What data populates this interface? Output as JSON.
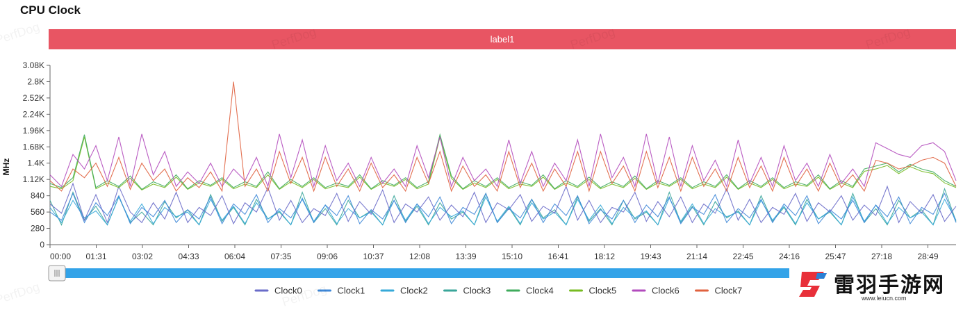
{
  "title": "CPU Clock",
  "watermark": "PerfDog",
  "colors": {
    "banner": "#e85563",
    "slider": "#33a3e8",
    "Clock0": "#6a6cc9",
    "Clock1": "#3f88d8",
    "Clock2": "#36a9d8",
    "Clock3": "#3aa69a",
    "Clock4": "#3fab5c",
    "Clock5": "#77bb22",
    "Clock6": "#b24bbd",
    "Clock7": "#e0623f"
  },
  "logo": {
    "name": "雷羽手游网",
    "url": "www.leiucn.com"
  },
  "chart_data": {
    "type": "line",
    "banner_label": "label1",
    "ylabel": "MHz",
    "ylim": [
      0,
      3080
    ],
    "y_ticks": [
      "0",
      "280",
      "560",
      "840",
      "1.12K",
      "1.4K",
      "1.68K",
      "1.96K",
      "2.24K",
      "2.52K",
      "2.8K",
      "3.08K"
    ],
    "x_ticks": [
      "00:00",
      "01:31",
      "03:02",
      "04:33",
      "06:04",
      "07:35",
      "09:06",
      "10:37",
      "12:08",
      "13:39",
      "15:10",
      "16:41",
      "18:12",
      "19:43",
      "21:14",
      "22:45",
      "24:16",
      "25:47",
      "27:18",
      "28:49"
    ],
    "x_range_seconds": [
      0,
      1860
    ],
    "legend": [
      "Clock0",
      "Clock1",
      "Clock2",
      "Clock3",
      "Clock4",
      "Clock5",
      "Clock6",
      "Clock7"
    ],
    "series": [
      {
        "name": "Clock0",
        "values": [
          700,
          540,
          1050,
          420,
          860,
          380,
          1000,
          560,
          380,
          720,
          440,
          900,
          380,
          640,
          500,
          840,
          360,
          720,
          560,
          980,
          420,
          760,
          380,
          620,
          500,
          880,
          400,
          740,
          520,
          940,
          380,
          700,
          560,
          820,
          420,
          680,
          480,
          900,
          380,
          720,
          600,
          860,
          400,
          660,
          540,
          1000,
          420,
          760,
          380,
          640,
          560,
          900,
          400,
          740,
          480,
          820,
          380,
          700,
          540,
          960,
          420,
          780,
          380,
          640,
          520,
          880,
          400,
          720,
          560,
          840,
          420,
          680,
          500,
          1000,
          380,
          740,
          540,
          860,
          400,
          660
        ]
      },
      {
        "name": "Clock1",
        "values": [
          560,
          420,
          880,
          380,
          720,
          500,
          840,
          360,
          640,
          480,
          760,
          380,
          600,
          440,
          820,
          360,
          700,
          520,
          860,
          380,
          620,
          460,
          780,
          380,
          680,
          500,
          840,
          360,
          600,
          440,
          760,
          380,
          700,
          480,
          820,
          360,
          640,
          520,
          880,
          380,
          620,
          460,
          780,
          380,
          700,
          500,
          840,
          360,
          600,
          440,
          760,
          380,
          680,
          480,
          820,
          360,
          640,
          520,
          860,
          380,
          620,
          460,
          780,
          380,
          700,
          500,
          840,
          360,
          600,
          440,
          760,
          380,
          680,
          480,
          820,
          360,
          640,
          520,
          880,
          380
        ]
      },
      {
        "name": "Clock2",
        "values": [
          640,
          380,
          760,
          460,
          580,
          340,
          820,
          400,
          700,
          360,
          640,
          480,
          560,
          340,
          780,
          420,
          660,
          360,
          720,
          440,
          580,
          340,
          800,
          400,
          680,
          360,
          620,
          460,
          560,
          340,
          760,
          420,
          700,
          360,
          640,
          480,
          580,
          340,
          820,
          400,
          660,
          360,
          720,
          440,
          560,
          340,
          780,
          420,
          680,
          360,
          640,
          460,
          580,
          340,
          800,
          400,
          700,
          360,
          620,
          480,
          560,
          340,
          760,
          420,
          660,
          360,
          720,
          440,
          580,
          340,
          820,
          400,
          680,
          360,
          640,
          460,
          560,
          340,
          780,
          420
        ]
      },
      {
        "name": "Clock3",
        "values": [
          760,
          340,
          900,
          420,
          660,
          340,
          820,
          380,
          560,
          340,
          740,
          460,
          600,
          340,
          860,
          400,
          640,
          340,
          780,
          440,
          560,
          340,
          900,
          380,
          620,
          340,
          760,
          460,
          580,
          340,
          840,
          400,
          660,
          340,
          720,
          440,
          560,
          340,
          880,
          380,
          640,
          340,
          780,
          460,
          600,
          340,
          820,
          400,
          620,
          340,
          760,
          440,
          560,
          340,
          900,
          380,
          660,
          340,
          740,
          460,
          580,
          340,
          840,
          400,
          640,
          340,
          780,
          440,
          560,
          340,
          880,
          380,
          620,
          340,
          760,
          460,
          600,
          340,
          960,
          400
        ]
      },
      {
        "name": "Clock4",
        "values": [
          1050,
          980,
          1150,
          1890,
          980,
          1100,
          1000,
          1180,
          950,
          1080,
          1000,
          1200,
          960,
          1100,
          1020,
          1150,
          980,
          1080,
          1000,
          1250,
          960,
          1120,
          1000,
          1150,
          980,
          1060,
          1000,
          1200,
          960,
          1100,
          1020,
          1150,
          980,
          1080,
          1890,
          1180,
          960,
          1100,
          1000,
          1150,
          980,
          1080,
          1020,
          1200,
          960,
          1100,
          1000,
          1160,
          980,
          1080,
          1000,
          1180,
          960,
          1100,
          1020,
          1150,
          980,
          1080,
          1000,
          1200,
          960,
          1100,
          1000,
          1150,
          980,
          1080,
          1020,
          1200,
          960,
          1100,
          1000,
          1300,
          1350,
          1400,
          1250,
          1380,
          1300,
          1250,
          1100,
          1000
        ]
      },
      {
        "name": "Clock5",
        "values": [
          1000,
          960,
          1100,
          1850,
          960,
          1060,
          980,
          1140,
          940,
          1040,
          980,
          1160,
          950,
          1060,
          1000,
          1120,
          960,
          1040,
          980,
          1200,
          950,
          1080,
          980,
          1120,
          960,
          1020,
          980,
          1160,
          950,
          1060,
          1000,
          1120,
          960,
          1040,
          1850,
          1140,
          950,
          1060,
          980,
          1120,
          960,
          1040,
          1000,
          1160,
          950,
          1060,
          980,
          1120,
          960,
          1040,
          980,
          1140,
          950,
          1060,
          1000,
          1120,
          960,
          1040,
          980,
          1160,
          950,
          1060,
          980,
          1120,
          960,
          1040,
          1000,
          1160,
          950,
          1060,
          980,
          1260,
          1300,
          1360,
          1220,
          1340,
          1260,
          1220,
          1060,
          980
        ]
      },
      {
        "name": "Clock6",
        "values": [
          1200,
          1000,
          1550,
          1300,
          1700,
          1100,
          1850,
          1000,
          1900,
          1200,
          1600,
          1000,
          1250,
          1050,
          1400,
          1000,
          1300,
          1100,
          1500,
          1000,
          1900,
          1150,
          1800,
          1000,
          1700,
          1100,
          1400,
          1000,
          1500,
          1050,
          1300,
          1000,
          1700,
          1150,
          1850,
          1000,
          1500,
          1100,
          1300,
          1000,
          1800,
          1050,
          1600,
          1000,
          1400,
          1100,
          1800,
          1000,
          1900,
          1150,
          1500,
          1000,
          1900,
          1050,
          1850,
          1000,
          1700,
          1100,
          1450,
          1000,
          1800,
          1050,
          1500,
          1000,
          1700,
          1100,
          1400,
          1000,
          1550,
          1050,
          1300,
          1000,
          1750,
          1650,
          1550,
          1500,
          1700,
          1750,
          1600,
          1100
        ]
      },
      {
        "name": "Clock7",
        "values": [
          1100,
          920,
          1300,
          1150,
          1400,
          1000,
          1500,
          950,
          1400,
          1100,
          1300,
          920,
          1150,
          980,
          1250,
          920,
          2800,
          1000,
          1300,
          920,
          1600,
          1050,
          1500,
          920,
          1500,
          1000,
          1300,
          920,
          1400,
          980,
          1200,
          920,
          1500,
          1050,
          1600,
          920,
          1350,
          1000,
          1200,
          920,
          1600,
          980,
          1400,
          920,
          1300,
          1000,
          1600,
          920,
          1600,
          1050,
          1350,
          920,
          1600,
          980,
          1500,
          920,
          1500,
          1000,
          1300,
          920,
          1500,
          980,
          1350,
          920,
          1500,
          1000,
          1300,
          920,
          1400,
          980,
          1200,
          920,
          1450,
          1400,
          1300,
          1350,
          1450,
          1500,
          1400,
          1000
        ]
      }
    ]
  }
}
